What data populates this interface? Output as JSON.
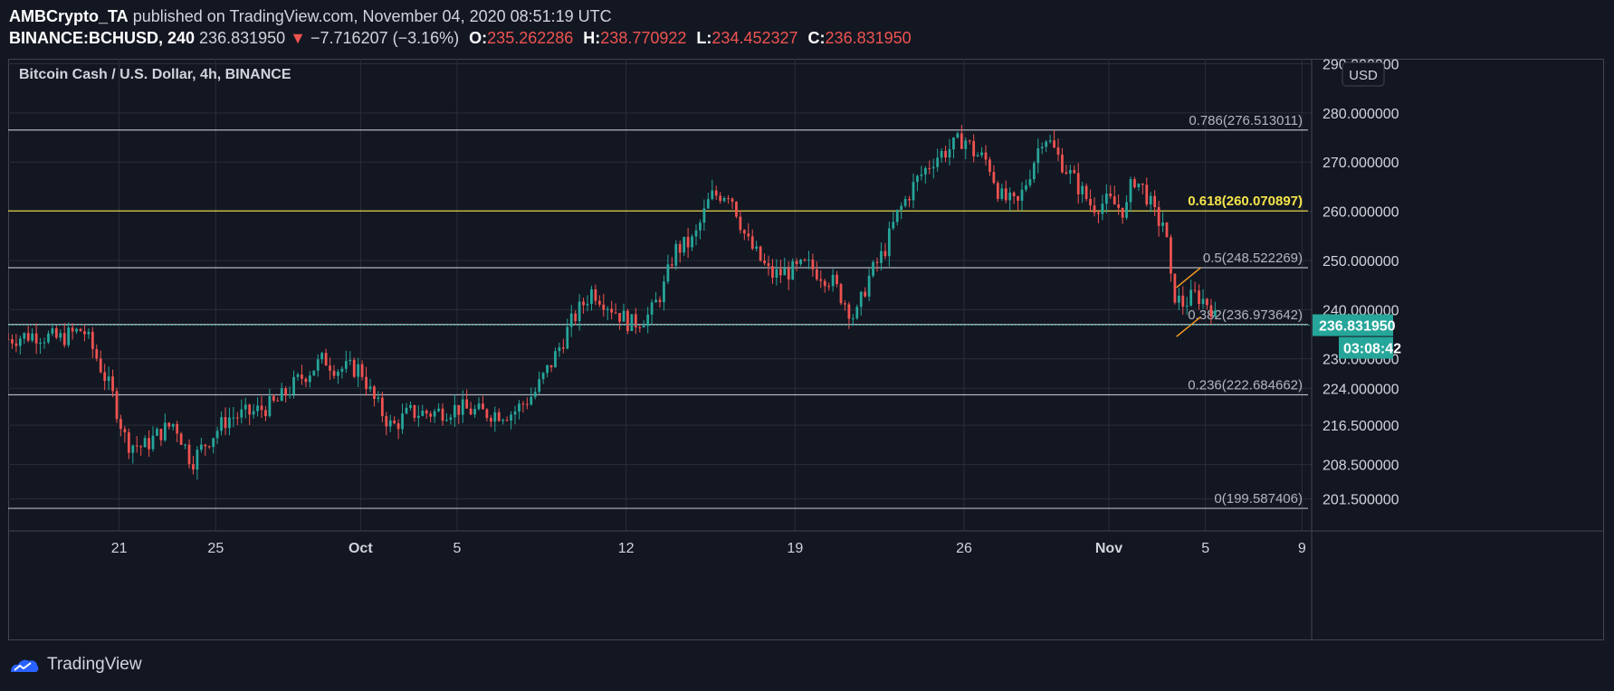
{
  "header": {
    "author": "AMBCrypto_TA",
    "published": "published on TradingView.com, November 04, 2020 08:51:19 UTC",
    "symbol": "BINANCE:BCHUSD, 240",
    "last": "236.831950",
    "arrow": "▼",
    "change": "−7.716207 (−3.16%)",
    "o_label": "O:",
    "o_value": "235.262286",
    "h_label": "H:",
    "h_value": "238.770922",
    "l_label": "L:",
    "l_value": "234.452327",
    "c_label": "C:",
    "c_value": "236.831950"
  },
  "footer": {
    "brand": "TradingView",
    "logo_icon": "tradingview-logo-icon"
  },
  "colors": {
    "background": "#131722",
    "up": "#26a69a",
    "down": "#ef5350",
    "fib": "#b2b5be",
    "fib_highlight": "#f5e44a",
    "channel": "#f59a23",
    "price_label_bg": "#26a69a"
  },
  "chart_data": {
    "type": "candlestick",
    "title": "Bitcoin Cash / U.S. Dollar, 4h, BINANCE",
    "currency": "USD",
    "ylim": [
      195,
      291
    ],
    "y_tick_labels": [
      "290.000000",
      "280.000000",
      "270.000000",
      "260.000000",
      "250.000000",
      "240.000000",
      "230.000000",
      "224.000000",
      "216.500000",
      "208.500000",
      "201.500000"
    ],
    "x_tick_labels": [
      "21",
      "25",
      "Oct",
      "5",
      "12",
      "19",
      "26",
      "Nov",
      "5",
      "9"
    ],
    "x_tick_days": [
      21,
      25,
      31,
      35,
      42,
      49,
      56,
      62,
      66,
      70
    ],
    "x_range_days": [
      16.4,
      70.4
    ],
    "current_price": "236.831950",
    "current_price_value": 236.832,
    "countdown": "03:08:42",
    "fib_levels": [
      {
        "label": "0.786(276.513011)",
        "value": 276.513,
        "highlight": false
      },
      {
        "label": "0.618(260.070897)",
        "value": 260.071,
        "highlight": true
      },
      {
        "label": "0.5(248.522269)",
        "value": 248.522,
        "highlight": false
      },
      {
        "label": "0.382(236.973642)",
        "value": 236.974,
        "highlight": false
      },
      {
        "label": "0.236(222.684662)",
        "value": 222.685,
        "highlight": false
      },
      {
        "label": "0(199.587406)",
        "value": 199.587,
        "highlight": false
      }
    ],
    "price_path": [
      [
        16.4,
        234
      ],
      [
        17.5,
        235
      ],
      [
        18.5,
        234
      ],
      [
        19.5,
        236
      ],
      [
        20,
        231
      ],
      [
        20.7,
        223
      ],
      [
        21.3,
        213
      ],
      [
        22,
        212
      ],
      [
        22.7,
        215
      ],
      [
        23.3,
        217
      ],
      [
        24,
        209
      ],
      [
        24.6,
        213
      ],
      [
        25.5,
        218
      ],
      [
        26.5,
        219
      ],
      [
        27.5,
        221
      ],
      [
        28.5,
        226
      ],
      [
        29.5,
        230
      ],
      [
        30,
        228
      ],
      [
        31,
        228
      ],
      [
        31.5,
        222
      ],
      [
        32.3,
        216
      ],
      [
        33,
        219
      ],
      [
        34,
        219
      ],
      [
        35,
        220
      ],
      [
        36,
        219
      ],
      [
        37.3,
        219
      ],
      [
        38.2,
        223
      ],
      [
        39,
        230
      ],
      [
        39.8,
        238
      ],
      [
        40.6,
        244
      ],
      [
        41.5,
        240
      ],
      [
        42.2,
        237
      ],
      [
        43,
        239
      ],
      [
        43.6,
        245
      ],
      [
        44,
        252
      ],
      [
        44.8,
        254
      ],
      [
        45.5,
        263
      ],
      [
        46.3,
        264
      ],
      [
        47,
        254
      ],
      [
        48,
        247
      ],
      [
        49,
        248
      ],
      [
        49.5,
        249
      ],
      [
        50.5,
        246
      ],
      [
        51.5,
        238
      ],
      [
        52,
        246
      ],
      [
        52.7,
        252
      ],
      [
        53.2,
        259
      ],
      [
        54,
        266
      ],
      [
        54.8,
        271
      ],
      [
        55.5,
        273
      ],
      [
        56,
        275
      ],
      [
        56.4,
        272
      ],
      [
        57,
        270
      ],
      [
        57.5,
        263
      ],
      [
        58.2,
        261
      ],
      [
        58.8,
        269
      ],
      [
        59.3,
        276
      ],
      [
        59.9,
        271
      ],
      [
        60.6,
        266
      ],
      [
        61.3,
        261
      ],
      [
        62,
        262
      ],
      [
        62.7,
        260
      ],
      [
        63,
        267
      ],
      [
        63.5,
        264
      ],
      [
        64,
        258
      ],
      [
        64.3,
        258
      ],
      [
        64.6,
        244
      ],
      [
        65,
        241
      ],
      [
        65.6,
        243
      ],
      [
        66.2,
        241
      ],
      [
        66.5,
        236.8
      ]
    ],
    "channel_lines": [
      {
        "x": [
          64.8,
          65.8
        ],
        "y": [
          244.5,
          248.5
        ]
      },
      {
        "x": [
          64.8,
          65.8
        ],
        "y": [
          234.5,
          238.5
        ]
      }
    ]
  }
}
